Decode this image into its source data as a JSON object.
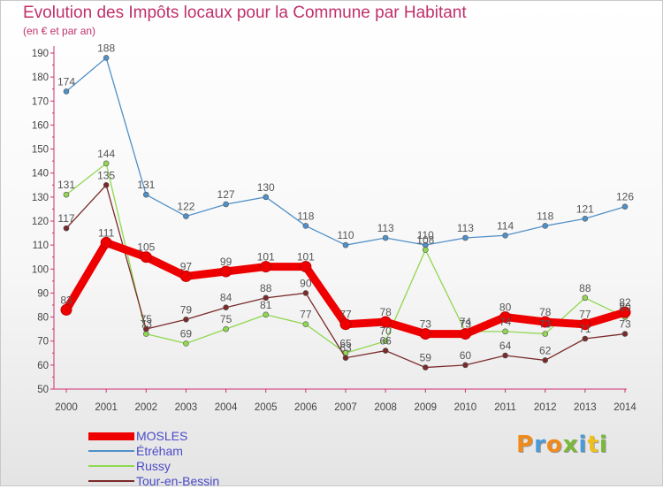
{
  "chart_data": {
    "type": "line",
    "title": "Evolution des Impôts locaux pour la Commune par Habitant",
    "subtitle": "(en € et par an)",
    "xlabel": "",
    "ylabel": "",
    "ylim": [
      50,
      190
    ],
    "yticks": [
      50,
      60,
      70,
      80,
      90,
      100,
      110,
      120,
      130,
      140,
      150,
      160,
      170,
      180,
      190
    ],
    "categories": [
      "2000",
      "2001",
      "2002",
      "2003",
      "2004",
      "2005",
      "2006",
      "2007",
      "2008",
      "2009",
      "2010",
      "2011",
      "2012",
      "2013",
      "2014"
    ],
    "grid": false,
    "series": [
      {
        "name": "MOSLES",
        "color": "#ee0000",
        "emphasis": true,
        "values": [
          83,
          111,
          105,
          97,
          99,
          101,
          101,
          77,
          78,
          73,
          73,
          80,
          78,
          77,
          82
        ]
      },
      {
        "name": "Étréham",
        "color": "#5090c8",
        "emphasis": false,
        "values": [
          174,
          188,
          131,
          122,
          127,
          130,
          118,
          110,
          113,
          110,
          113,
          114,
          118,
          121,
          126
        ]
      },
      {
        "name": "Russy",
        "color": "#90d850",
        "emphasis": false,
        "values": [
          131,
          144,
          73,
          69,
          75,
          81,
          77,
          65,
          70,
          108,
          74,
          74,
          73,
          88,
          80
        ]
      },
      {
        "name": "Tour-en-Bessin",
        "color": "#7a2a2a",
        "emphasis": false,
        "values": [
          117,
          135,
          75,
          79,
          84,
          88,
          90,
          63,
          66,
          59,
          60,
          64,
          62,
          71,
          73
        ]
      }
    ]
  },
  "brand": {
    "letters": [
      "P",
      "r",
      "o",
      "x",
      "i",
      "t",
      "i"
    ],
    "colors": [
      "#f08a1a",
      "#4a9ad8",
      "#f08a1a",
      "#7ab83a",
      "#4a9ad8",
      "#f0c01a",
      "#7ab83a"
    ]
  }
}
